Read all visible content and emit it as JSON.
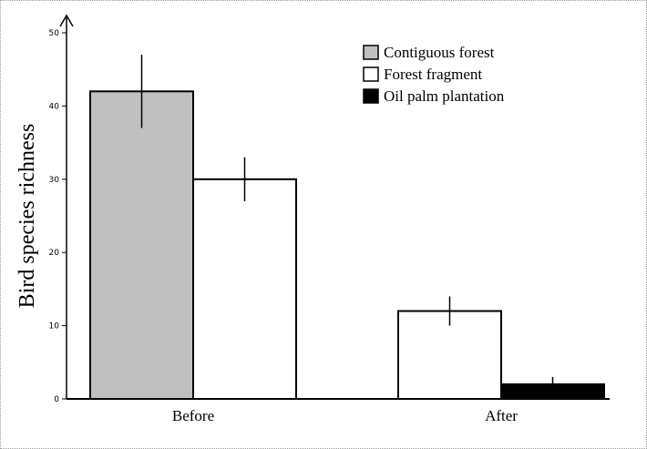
{
  "chart_data": {
    "type": "bar",
    "title": "",
    "xlabel": "",
    "ylabel": "Bird species richness",
    "ylim": [
      0,
      50
    ],
    "yticks": [
      0,
      10,
      20,
      30,
      40,
      50
    ],
    "grid": false,
    "legend_position": "top-right",
    "categories": [
      "Before",
      "After"
    ],
    "series": [
      {
        "name": "Contiguous forest",
        "color": "#c0c0c0",
        "values": [
          42,
          null
        ],
        "errors": [
          5,
          null
        ]
      },
      {
        "name": "Forest fragment",
        "color": "#ffffff",
        "values": [
          30,
          12
        ],
        "errors": [
          3,
          2
        ]
      },
      {
        "name": "Oil palm plantation",
        "color": "#000000",
        "values": [
          null,
          2
        ],
        "errors": [
          null,
          1
        ]
      }
    ]
  }
}
